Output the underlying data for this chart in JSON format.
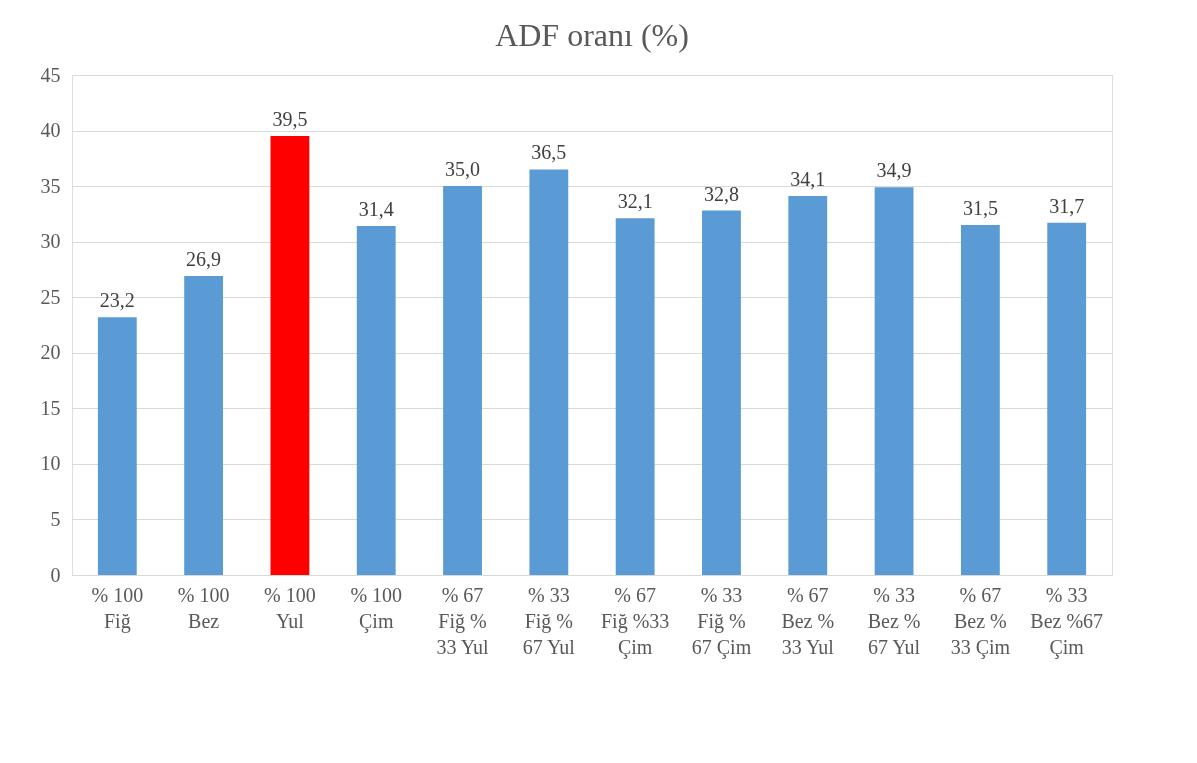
{
  "chart_data": {
    "type": "bar",
    "title": "ADF oranı (%)",
    "categories": [
      "% 100 Fiğ",
      "% 100 Bez",
      "% 100 Yul",
      "% 100 Çim",
      "% 67 Fiğ % 33 Yul",
      "% 33 Fiğ % 67 Yul",
      "% 67 Fiğ %33 Çim",
      "% 33 Fiğ % 67 Çim",
      "% 67 Bez % 33 Yul",
      "% 33 Bez % 67 Yul",
      "% 67 Bez % 33 Çim",
      "% 33 Bez %67 Çim"
    ],
    "values": [
      23.2,
      26.9,
      39.5,
      31.4,
      35.0,
      36.5,
      32.1,
      32.8,
      34.1,
      34.9,
      31.5,
      31.7
    ],
    "value_labels": [
      "23,2",
      "26,9",
      "39,5",
      "31,4",
      "35,0",
      "36,5",
      "32,1",
      "32,8",
      "34,1",
      "34,9",
      "31,5",
      "31,7"
    ],
    "colors": [
      "#5b9bd5",
      "#5b9bd5",
      "#ff0000",
      "#5b9bd5",
      "#5b9bd5",
      "#5b9bd5",
      "#5b9bd5",
      "#5b9bd5",
      "#5b9bd5",
      "#5b9bd5",
      "#5b9bd5",
      "#5b9bd5"
    ],
    "ylim": [
      0,
      45
    ],
    "yticks": [
      0,
      5,
      10,
      15,
      20,
      25,
      30,
      35,
      40,
      45
    ],
    "grid": "y"
  }
}
